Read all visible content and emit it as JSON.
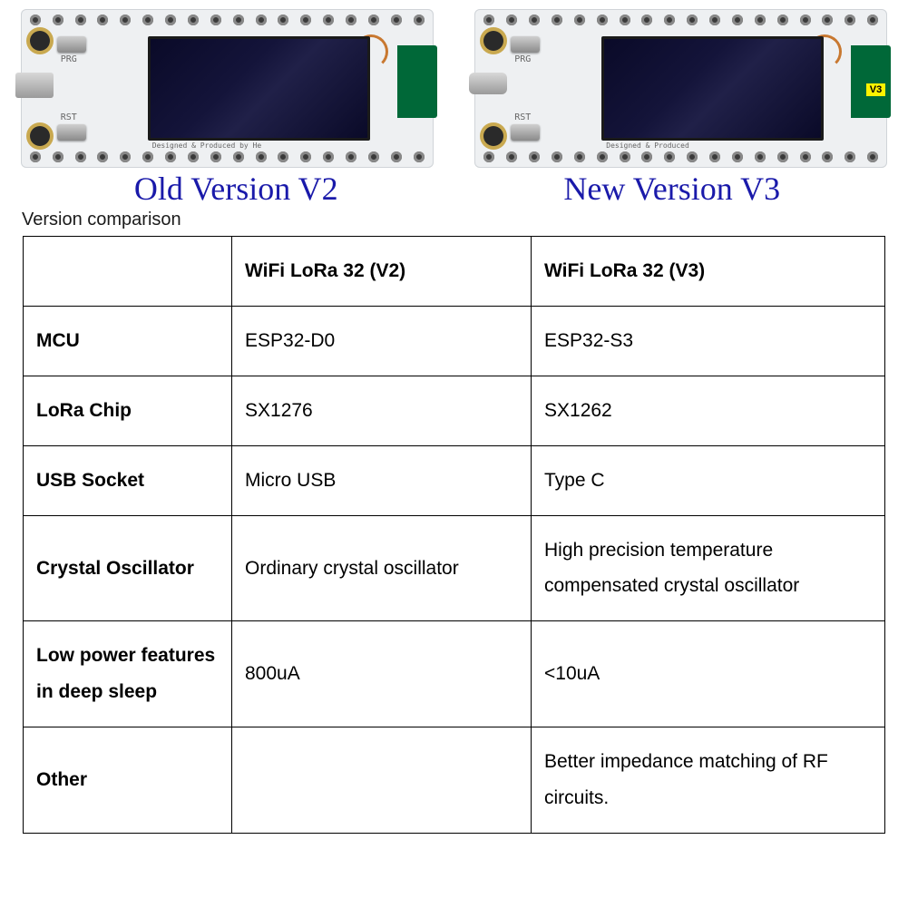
{
  "boards": {
    "left": {
      "silk_prg": "PRG",
      "silk_rst": "RST",
      "silk_brand": "Designed & Produced by He"
    },
    "right": {
      "silk_prg": "PRG",
      "silk_rst": "RST",
      "silk_brand": "Designed & Produced",
      "v3_badge": "V3"
    }
  },
  "labels": {
    "old": "Old Version V2",
    "new": "New Version V3"
  },
  "caption": "Version comparison",
  "table": {
    "headers": {
      "empty": "",
      "v2": "WiFi LoRa 32 (V2)",
      "v3": "WiFi LoRa 32 (V3)"
    },
    "rows": [
      {
        "label": "MCU",
        "v2": "ESP32-D0",
        "v3": "ESP32-S3"
      },
      {
        "label": "LoRa Chip",
        "v2": "SX1276",
        "v3": "SX1262"
      },
      {
        "label": "USB Socket",
        "v2": "Micro USB",
        "v3": "Type C"
      },
      {
        "label": "Crystal Oscillator",
        "v2": "Ordinary crystal oscillator",
        "v3": "High precision temperature compensated crystal oscillator"
      },
      {
        "label": "Low power features in deep sleep",
        "v2": "800uA",
        "v3": "<10uA"
      },
      {
        "label": "Other",
        "v2": "",
        "v3": "Better impedance matching of RF circuits."
      }
    ]
  },
  "colors": {
    "label_blue": "#1a1aaa",
    "pcb_bg": "#eef0f2",
    "screen_dark": "#0a0a28",
    "green_tab": "#006838",
    "border": "#000000"
  }
}
